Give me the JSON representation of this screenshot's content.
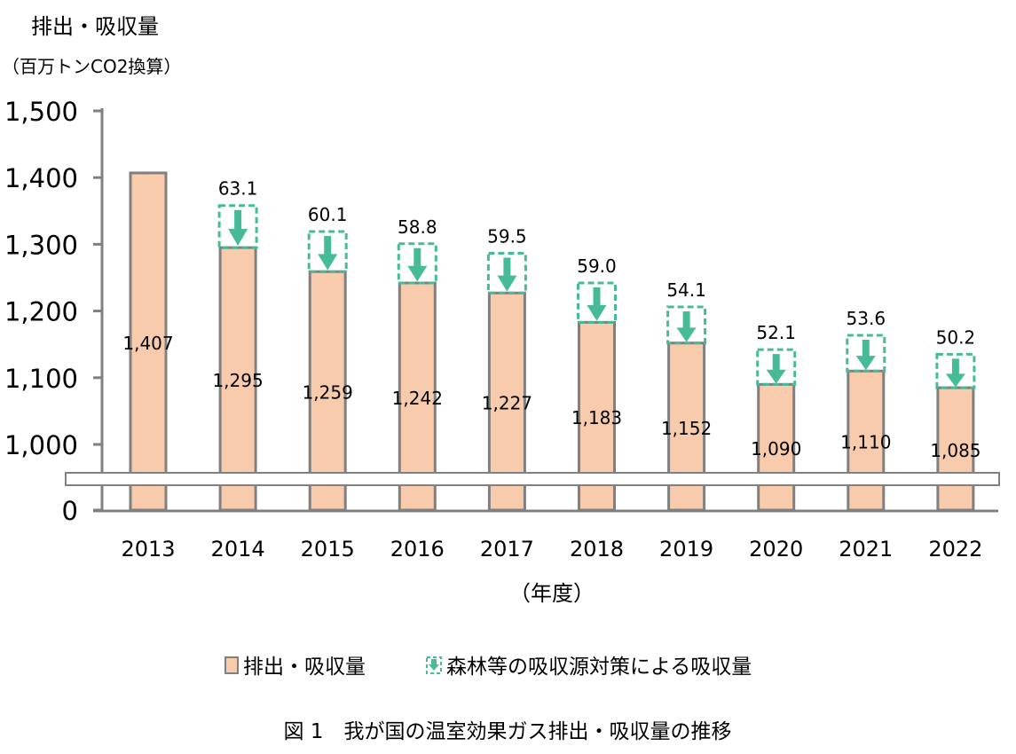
{
  "chart_data": {
    "type": "bar",
    "title": "",
    "ylabel": "排出・吸収量",
    "yunit": "（百万トンCO2換算）",
    "xlabel": "（年度）",
    "ylim": [
      0,
      1500
    ],
    "axis_break": [
      0,
      1000
    ],
    "yticks": [
      "0",
      "1,000",
      "1,100",
      "1,200",
      "1,300",
      "1,400",
      "1,500"
    ],
    "categories": [
      "2013",
      "2014",
      "2015",
      "2016",
      "2017",
      "2018",
      "2019",
      "2020",
      "2021",
      "2022"
    ],
    "series": [
      {
        "name": "排出・吸収量",
        "values": [
          1407,
          1295,
          1259,
          1242,
          1227,
          1183,
          1152,
          1090,
          1110,
          1085
        ],
        "labels": [
          "1,407",
          "1,295",
          "1,259",
          "1,242",
          "1,227",
          "1,183",
          "1,152",
          "1,090",
          "1,110",
          "1,085"
        ],
        "color": "#f8cbad"
      },
      {
        "name": "森林等の吸収源対策による吸収量",
        "values": [
          null,
          63.1,
          60.1,
          58.8,
          59.5,
          59.0,
          54.1,
          52.1,
          53.6,
          50.2
        ],
        "labels": [
          "",
          "63.1",
          "60.1",
          "58.8",
          "59.5",
          "59.0",
          "54.1",
          "52.1",
          "53.6",
          "50.2"
        ],
        "color": "#47bb98"
      }
    ],
    "grid": false,
    "legend": "bottom",
    "caption": "図 1　我が国の温室効果ガス排出・吸収量の推移"
  }
}
